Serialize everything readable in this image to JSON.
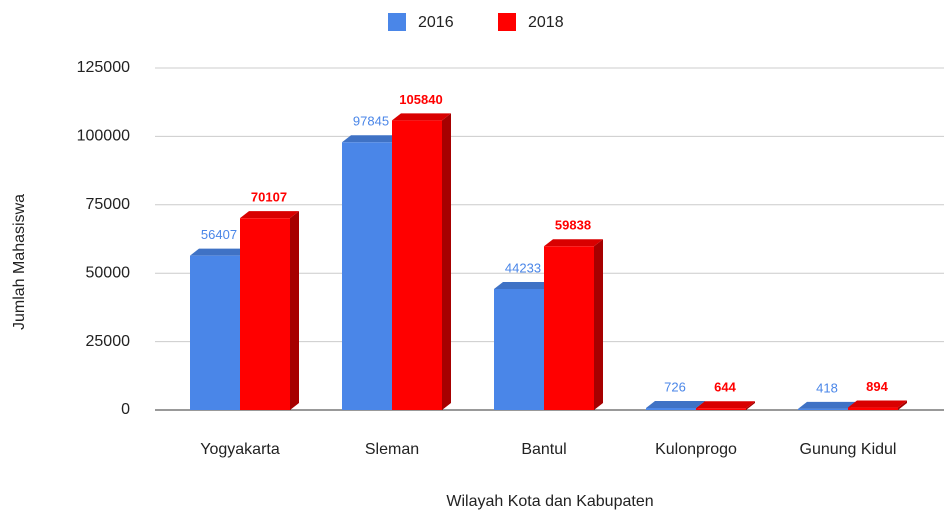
{
  "chart_data": {
    "type": "bar3d",
    "categories": [
      "Yogyakarta",
      "Sleman",
      "Bantul",
      "Kulonprogo",
      "Gunung Kidul"
    ],
    "series": [
      {
        "name": "2016",
        "color": "#4a86e8",
        "values": [
          56407,
          97845,
          44233,
          726,
          418
        ]
      },
      {
        "name": "2018",
        "color": "#ff0000",
        "values": [
          70107,
          105840,
          59838,
          644,
          894
        ]
      }
    ],
    "x_label": "Wilayah Kota dan Kabupaten",
    "y_label": "Jumlah Mahasiswa",
    "ylim": [
      0,
      125000
    ],
    "yticks": [
      0,
      25000,
      50000,
      75000,
      100000,
      125000
    ],
    "grid": true,
    "legend": "top"
  }
}
